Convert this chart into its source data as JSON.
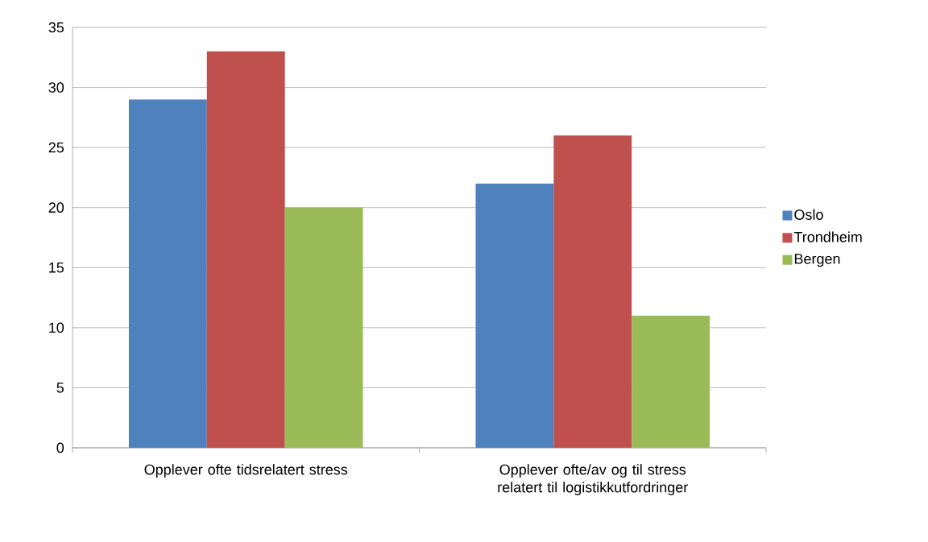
{
  "chart_data": {
    "type": "bar",
    "categories": [
      "Opplever ofte tidsrelatert stress",
      "Opplever ofte/av og til stress relatert til logistikkutfordringer"
    ],
    "series": [
      {
        "name": "Oslo",
        "color": "#4f81bd",
        "values": [
          29,
          22
        ]
      },
      {
        "name": "Trondheim",
        "color": "#c0504d",
        "values": [
          33,
          26
        ]
      },
      {
        "name": "Bergen",
        "color": "#9bbb59",
        "values": [
          20,
          11
        ]
      }
    ],
    "ylim": [
      0,
      35
    ],
    "yticks": [
      0,
      5,
      10,
      15,
      20,
      25,
      30,
      35
    ],
    "grid": "y",
    "legend": "right"
  }
}
